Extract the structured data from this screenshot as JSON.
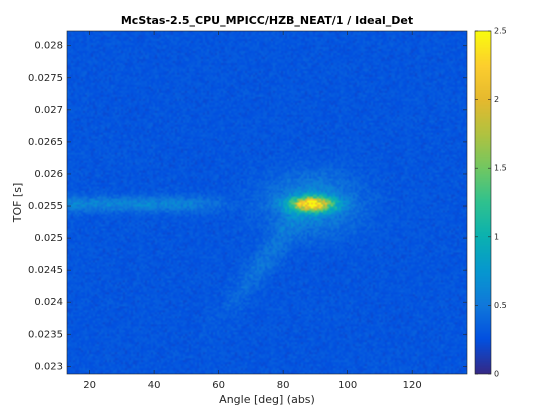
{
  "chart_data": {
    "type": "heatmap",
    "title": "McStas-2.5_CPU_MPICC/HZB_NEAT/1 / Ideal_Det",
    "xlabel": "Angle [deg] (abs)",
    "ylabel": "TOF [s]",
    "xlim": [
      13,
      137
    ],
    "ylim": [
      0.02288,
      0.02823
    ],
    "x_ticks": [
      {
        "value": 20,
        "label": "20"
      },
      {
        "value": 40,
        "label": "40"
      },
      {
        "value": 60,
        "label": "60"
      },
      {
        "value": 80,
        "label": "80"
      },
      {
        "value": 100,
        "label": "100"
      },
      {
        "value": 120,
        "label": "120"
      }
    ],
    "y_ticks": [
      {
        "value": 0.023,
        "label": "0.023"
      },
      {
        "value": 0.0235,
        "label": "0.0235"
      },
      {
        "value": 0.024,
        "label": "0.024"
      },
      {
        "value": 0.0245,
        "label": "0.0245"
      },
      {
        "value": 0.025,
        "label": "0.025"
      },
      {
        "value": 0.0255,
        "label": "0.0255"
      },
      {
        "value": 0.026,
        "label": "0.026"
      },
      {
        "value": 0.0265,
        "label": "0.0265"
      },
      {
        "value": 0.027,
        "label": "0.027"
      },
      {
        "value": 0.0275,
        "label": "0.0275"
      },
      {
        "value": 0.028,
        "label": "0.028"
      }
    ],
    "colorbar": {
      "range": [
        0,
        2.5
      ],
      "colormap": "parula",
      "ticks": [
        {
          "value": 0,
          "label": "0"
        },
        {
          "value": 0.5,
          "label": "0.5"
        },
        {
          "value": 1,
          "label": "1"
        },
        {
          "value": 1.5,
          "label": "1.5"
        },
        {
          "value": 2,
          "label": "2"
        },
        {
          "value": 2.5,
          "label": "2.5"
        }
      ]
    },
    "features": {
      "background_intensity": 0.28,
      "peak": {
        "x": 89,
        "y": 0.02553,
        "max_intensity": 2.5
      },
      "horizontal_band": {
        "y": 0.02553,
        "x_range": [
          13,
          60
        ],
        "intensity": 0.5
      },
      "elastic_line_y": 0.02553
    },
    "grid": false
  }
}
